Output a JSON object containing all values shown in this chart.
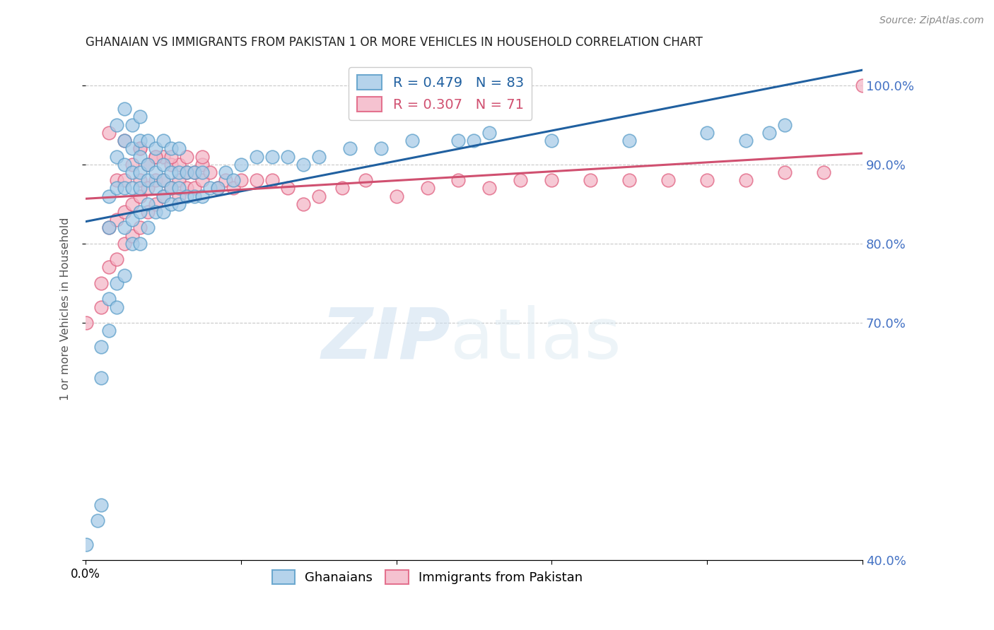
{
  "title": "GHANAIAN VS IMMIGRANTS FROM PAKISTAN 1 OR MORE VEHICLES IN HOUSEHOLD CORRELATION CHART",
  "source": "Source: ZipAtlas.com",
  "ylabel": "1 or more Vehicles in Household",
  "blue_label": "Ghanaians",
  "pink_label": "Immigrants from Pakistan",
  "blue_R": 0.479,
  "blue_N": 83,
  "pink_R": 0.307,
  "pink_N": 71,
  "blue_color": "#a8cce8",
  "pink_color": "#f4b8c8",
  "blue_edge_color": "#5b9ec9",
  "pink_edge_color": "#e06080",
  "blue_line_color": "#2060a0",
  "pink_line_color": "#d05070",
  "right_axis_color": "#4472c4",
  "legend_box_color": "#4472c4",
  "xmin": 0.0,
  "xmax": 1.0,
  "ymin": 0.4,
  "ymax": 1.035,
  "blue_x": [
    0.001,
    0.015,
    0.02,
    0.02,
    0.02,
    0.03,
    0.03,
    0.03,
    0.03,
    0.04,
    0.04,
    0.04,
    0.04,
    0.04,
    0.05,
    0.05,
    0.05,
    0.05,
    0.05,
    0.05,
    0.06,
    0.06,
    0.06,
    0.06,
    0.06,
    0.06,
    0.07,
    0.07,
    0.07,
    0.07,
    0.07,
    0.07,
    0.07,
    0.08,
    0.08,
    0.08,
    0.08,
    0.08,
    0.09,
    0.09,
    0.09,
    0.09,
    0.1,
    0.1,
    0.1,
    0.1,
    0.1,
    0.11,
    0.11,
    0.11,
    0.11,
    0.12,
    0.12,
    0.12,
    0.12,
    0.13,
    0.13,
    0.14,
    0.14,
    0.15,
    0.15,
    0.16,
    0.17,
    0.18,
    0.19,
    0.2,
    0.22,
    0.24,
    0.26,
    0.28,
    0.3,
    0.34,
    0.38,
    0.42,
    0.48,
    0.5,
    0.52,
    0.6,
    0.7,
    0.8,
    0.85,
    0.88,
    0.9
  ],
  "blue_y": [
    0.42,
    0.45,
    0.47,
    0.63,
    0.67,
    0.69,
    0.73,
    0.82,
    0.86,
    0.72,
    0.75,
    0.87,
    0.91,
    0.95,
    0.76,
    0.82,
    0.87,
    0.9,
    0.93,
    0.97,
    0.8,
    0.83,
    0.87,
    0.89,
    0.92,
    0.95,
    0.8,
    0.84,
    0.87,
    0.89,
    0.91,
    0.93,
    0.96,
    0.82,
    0.85,
    0.88,
    0.9,
    0.93,
    0.84,
    0.87,
    0.89,
    0.92,
    0.84,
    0.86,
    0.88,
    0.9,
    0.93,
    0.85,
    0.87,
    0.89,
    0.92,
    0.85,
    0.87,
    0.89,
    0.92,
    0.86,
    0.89,
    0.86,
    0.89,
    0.86,
    0.89,
    0.87,
    0.87,
    0.89,
    0.88,
    0.9,
    0.91,
    0.91,
    0.91,
    0.9,
    0.91,
    0.92,
    0.92,
    0.93,
    0.93,
    0.93,
    0.94,
    0.93,
    0.93,
    0.94,
    0.93,
    0.94,
    0.95
  ],
  "pink_x": [
    0.001,
    0.02,
    0.02,
    0.03,
    0.03,
    0.04,
    0.04,
    0.04,
    0.05,
    0.05,
    0.05,
    0.06,
    0.06,
    0.06,
    0.07,
    0.07,
    0.07,
    0.07,
    0.08,
    0.08,
    0.08,
    0.09,
    0.09,
    0.09,
    0.1,
    0.1,
    0.1,
    0.11,
    0.11,
    0.12,
    0.12,
    0.12,
    0.13,
    0.13,
    0.14,
    0.14,
    0.15,
    0.15,
    0.16,
    0.17,
    0.18,
    0.19,
    0.2,
    0.22,
    0.24,
    0.26,
    0.28,
    0.3,
    0.33,
    0.36,
    0.4,
    0.44,
    0.48,
    0.52,
    0.56,
    0.6,
    0.65,
    0.7,
    0.75,
    0.8,
    0.85,
    0.9,
    0.95,
    1.0,
    0.03,
    0.05,
    0.07,
    0.09,
    0.11,
    0.13,
    0.15
  ],
  "pink_y": [
    0.7,
    0.72,
    0.75,
    0.77,
    0.82,
    0.78,
    0.83,
    0.88,
    0.8,
    0.84,
    0.88,
    0.81,
    0.85,
    0.9,
    0.82,
    0.86,
    0.88,
    0.92,
    0.84,
    0.87,
    0.9,
    0.85,
    0.88,
    0.91,
    0.86,
    0.88,
    0.91,
    0.87,
    0.9,
    0.86,
    0.88,
    0.9,
    0.87,
    0.89,
    0.87,
    0.89,
    0.88,
    0.9,
    0.89,
    0.87,
    0.88,
    0.87,
    0.88,
    0.88,
    0.88,
    0.87,
    0.85,
    0.86,
    0.87,
    0.88,
    0.86,
    0.87,
    0.88,
    0.87,
    0.88,
    0.88,
    0.88,
    0.88,
    0.88,
    0.88,
    0.88,
    0.89,
    0.89,
    1.0,
    0.94,
    0.93,
    0.92,
    0.91,
    0.91,
    0.91,
    0.91
  ],
  "watermark_zip": "ZIP",
  "watermark_atlas": "atlas",
  "figsize": [
    14.06,
    8.92
  ],
  "dpi": 100
}
